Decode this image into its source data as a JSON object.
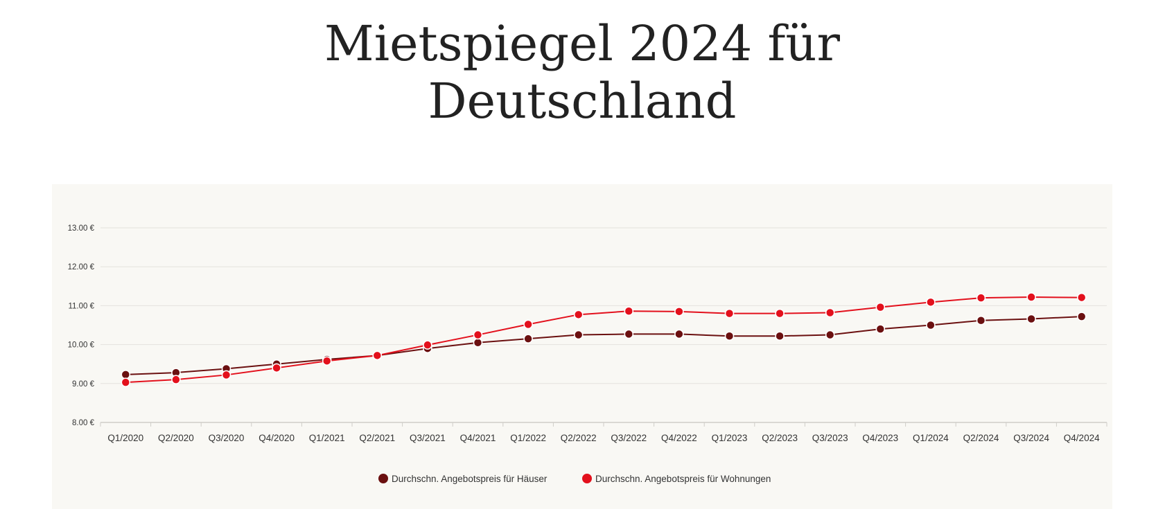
{
  "page": {
    "title_line1": "Mietspiegel 2024 für",
    "title_line2": "Deutschland"
  },
  "chart_data": {
    "type": "line",
    "title": "Mietspiegel 2024 für Deutschland",
    "xlabel": "",
    "ylabel": "",
    "categories": [
      "Q1/2020",
      "Q2/2020",
      "Q3/2020",
      "Q4/2020",
      "Q1/2021",
      "Q2/2021",
      "Q3/2021",
      "Q4/2021",
      "Q1/2022",
      "Q2/2022",
      "Q3/2022",
      "Q4/2022",
      "Q1/2023",
      "Q2/2023",
      "Q3/2023",
      "Q4/2023",
      "Q1/2024",
      "Q2/2024",
      "Q3/2024",
      "Q4/2024"
    ],
    "ylim": [
      8,
      13
    ],
    "yticks": [
      8,
      9,
      10,
      11,
      12,
      13
    ],
    "ytick_labels": [
      "8.00 €",
      "9.00 €",
      "10.00 €",
      "11.00 €",
      "12.00 €",
      "13.00 €"
    ],
    "grid": true,
    "legend_position": "bottom-center",
    "series": [
      {
        "name": "Durchschn. Angebotspreis für Häuser",
        "color": "#6b1010",
        "values": [
          9.23,
          9.28,
          9.38,
          9.5,
          9.62,
          9.72,
          9.9,
          10.05,
          10.15,
          10.25,
          10.27,
          10.27,
          10.22,
          10.22,
          10.25,
          10.4,
          10.5,
          10.62,
          10.66,
          10.72
        ]
      },
      {
        "name": "Durchschn. Angebotspreis für Wohnungen",
        "color": "#e3101c",
        "values": [
          9.03,
          9.1,
          9.22,
          9.4,
          9.58,
          9.72,
          9.99,
          10.25,
          10.52,
          10.77,
          10.86,
          10.85,
          10.8,
          10.8,
          10.82,
          10.96,
          11.09,
          11.2,
          11.22,
          11.21
        ]
      }
    ]
  }
}
